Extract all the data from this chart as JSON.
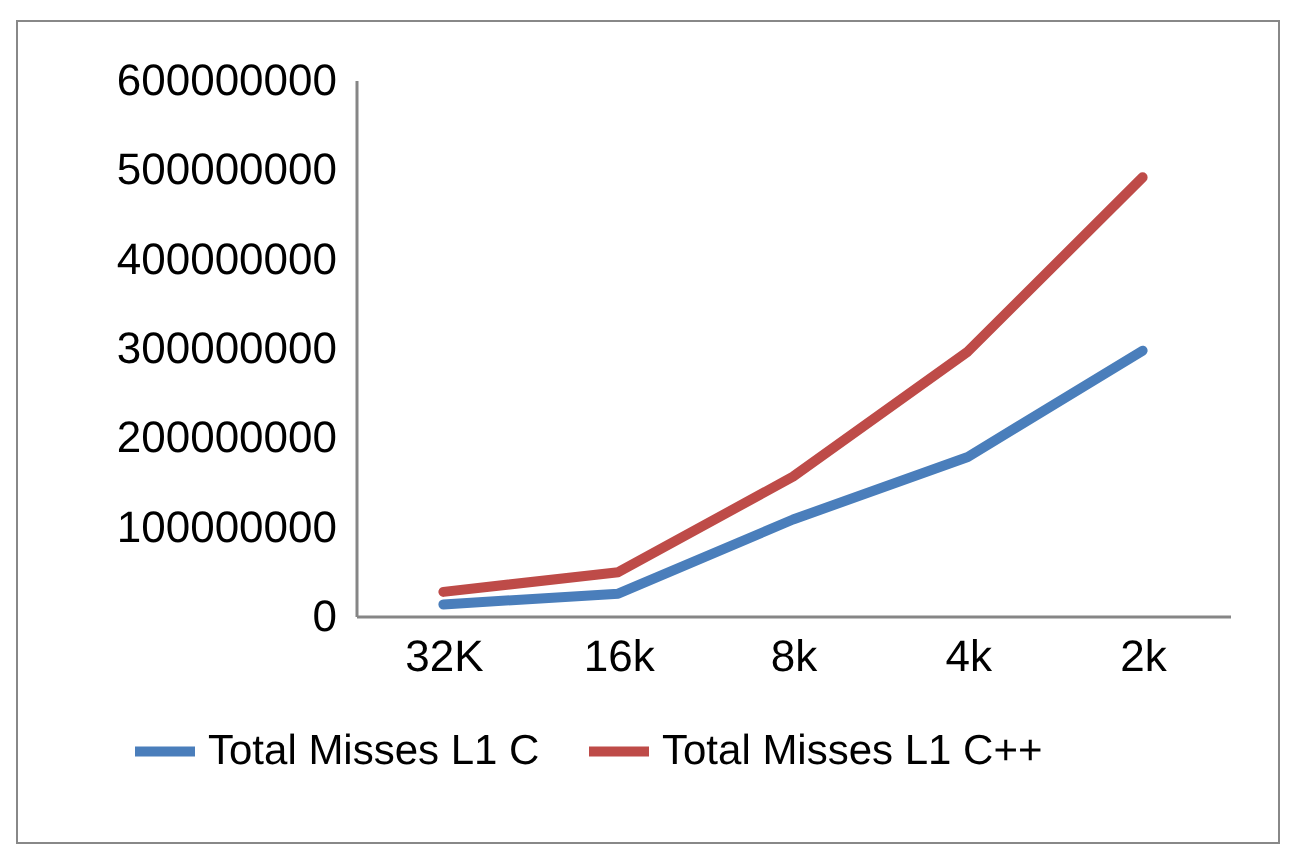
{
  "chart_data": {
    "type": "line",
    "categories": [
      "32K",
      "16k",
      "8k",
      "4k",
      "2k"
    ],
    "series": [
      {
        "name": "Total Misses L1 C",
        "color": "#4a7ebb",
        "values": [
          13000000,
          25000000,
          108000000,
          178000000,
          297000000
        ]
      },
      {
        "name": "Total Misses L1 C++",
        "color": "#be4b48",
        "values": [
          27000000,
          49000000,
          156000000,
          296000000,
          491000000
        ]
      }
    ],
    "ylim": [
      0,
      600000000
    ],
    "yticks": [
      0,
      100000000,
      200000000,
      300000000,
      400000000,
      500000000,
      600000000
    ],
    "grid": false,
    "legend": "bottom",
    "marker": "none",
    "line_style": "solid"
  }
}
